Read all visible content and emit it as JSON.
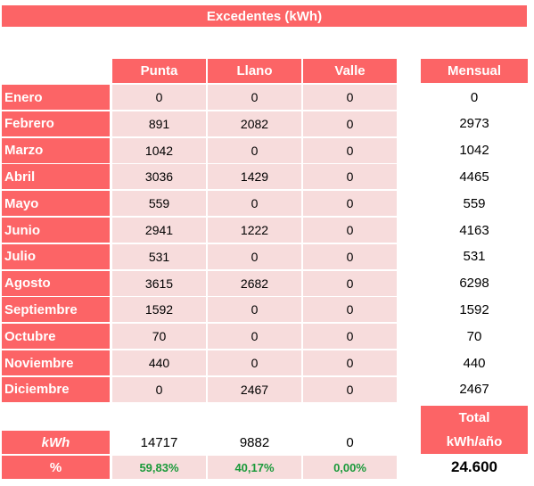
{
  "title": "Excedentes (kWh)",
  "headers": {
    "punta": "Punta",
    "llano": "Llano",
    "valle": "Valle",
    "mensual": "Mensual"
  },
  "rows": [
    {
      "month": "Enero",
      "punta": "0",
      "llano": "0",
      "valle": "0",
      "mensual": "0"
    },
    {
      "month": "Febrero",
      "punta": "891",
      "llano": "2082",
      "valle": "0",
      "mensual": "2973"
    },
    {
      "month": "Marzo",
      "punta": "1042",
      "llano": "0",
      "valle": "0",
      "mensual": "1042"
    },
    {
      "month": "Abril",
      "punta": "3036",
      "llano": "1429",
      "valle": "0",
      "mensual": "4465"
    },
    {
      "month": "Mayo",
      "punta": "559",
      "llano": "0",
      "valle": "0",
      "mensual": "559"
    },
    {
      "month": "Junio",
      "punta": "2941",
      "llano": "1222",
      "valle": "0",
      "mensual": "4163"
    },
    {
      "month": "Julio",
      "punta": "531",
      "llano": "0",
      "valle": "0",
      "mensual": "531"
    },
    {
      "month": "Agosto",
      "punta": "3615",
      "llano": "2682",
      "valle": "0",
      "mensual": "6298"
    },
    {
      "month": "Septiembre",
      "punta": "1592",
      "llano": "0",
      "valle": "0",
      "mensual": "1592"
    },
    {
      "month": "Octubre",
      "punta": "70",
      "llano": "0",
      "valle": "0",
      "mensual": "70"
    },
    {
      "month": "Noviembre",
      "punta": "440",
      "llano": "0",
      "valle": "0",
      "mensual": "440"
    },
    {
      "month": "Diciembre",
      "punta": "0",
      "llano": "2467",
      "valle": "0",
      "mensual": "2467"
    }
  ],
  "totals": {
    "kwh_label": "kWh",
    "kwh": {
      "punta": "14717",
      "llano": "9882",
      "valle": "0"
    },
    "pct_label": "%",
    "pct": {
      "punta": "59,83%",
      "llano": "40,17%",
      "valle": "0,00%"
    },
    "total_label_1": "Total",
    "total_label_2": "kWh/año",
    "grand_total": "24.600"
  },
  "colors": {
    "header_red": "#fc6466",
    "cell_pink": "#f7dcdc",
    "percent_green": "#1a9a3a"
  }
}
